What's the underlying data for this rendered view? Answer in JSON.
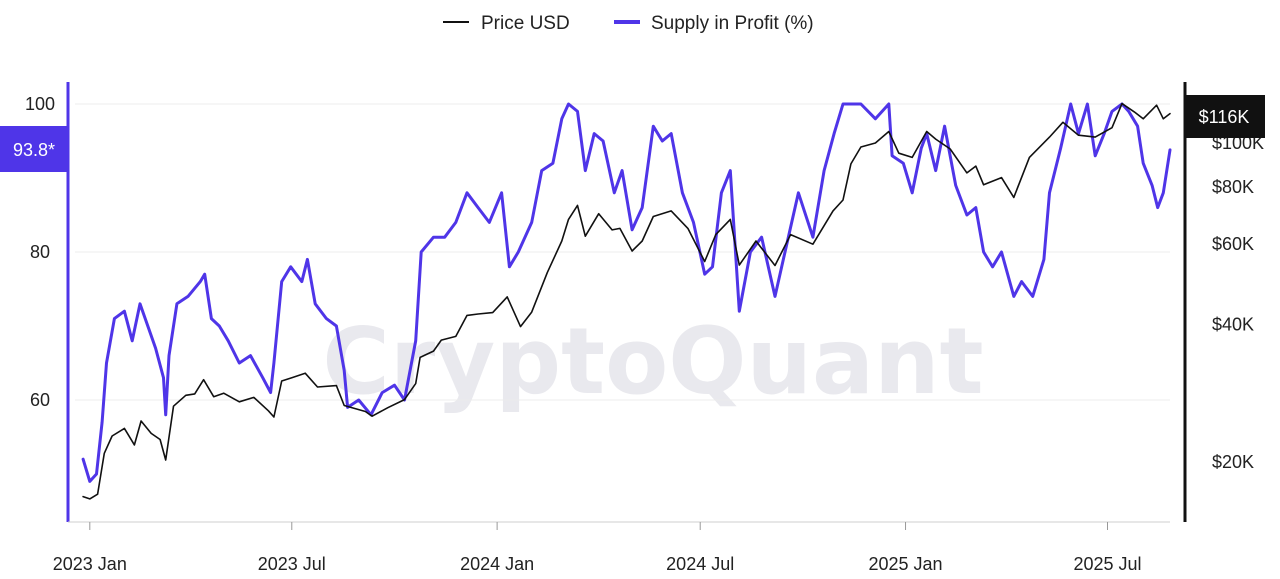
{
  "watermark": "CryptoQuant",
  "colors": {
    "price": "#111111",
    "supply": "#4f35e8",
    "grid": "#ececec",
    "price_badge_bg": "#111111",
    "supply_badge_bg": "#4f35e8"
  },
  "chart_data": {
    "type": "line",
    "legend": {
      "position": "top-center",
      "entries": [
        "Price USD",
        "Supply in Profit (%)"
      ]
    },
    "grid": true,
    "x_ticks": [
      "2023 Jan",
      "2023 Jul",
      "2024 Jan",
      "2024 Jul",
      "2025 Jan",
      "2025 Jul"
    ],
    "x_tick_dates": [
      "2023-01-01",
      "2023-07-01",
      "2024-01-01",
      "2024-07-01",
      "2025-01-01",
      "2025-07-01"
    ],
    "xlim": [
      "2022-12-25",
      "2025-08-26"
    ],
    "y_left": {
      "ticks": [
        60,
        80,
        100
      ],
      "tick_labels": [
        "60",
        "80",
        "100"
      ],
      "range": [
        45,
        103.5
      ]
    },
    "y_right": {
      "scale": "log",
      "ticks": [
        20000,
        40000,
        60000,
        80000,
        100000
      ],
      "tick_labels": [
        "$20K",
        "$40K",
        "$60K",
        "$80K",
        "$100K"
      ],
      "range": [
        14000,
        125000
      ]
    },
    "current_labels": {
      "price": "$116K",
      "supply": "93.8*"
    },
    "series": [
      {
        "name": "Supply in Profit (%)",
        "axis": "left",
        "points": [
          [
            "2022-12-26",
            52
          ],
          [
            "2023-01-01",
            49
          ],
          [
            "2023-01-07",
            50
          ],
          [
            "2023-01-12",
            57
          ],
          [
            "2023-01-16",
            65
          ],
          [
            "2023-01-23",
            71
          ],
          [
            "2023-02-01",
            72
          ],
          [
            "2023-02-08",
            68
          ],
          [
            "2023-02-15",
            73
          ],
          [
            "2023-02-22",
            70
          ],
          [
            "2023-03-01",
            67
          ],
          [
            "2023-03-08",
            63
          ],
          [
            "2023-03-10",
            58
          ],
          [
            "2023-03-13",
            66
          ],
          [
            "2023-03-20",
            73
          ],
          [
            "2023-03-30",
            74
          ],
          [
            "2023-04-10",
            76
          ],
          [
            "2023-04-14",
            77
          ],
          [
            "2023-04-20",
            71
          ],
          [
            "2023-04-27",
            70
          ],
          [
            "2023-05-05",
            68
          ],
          [
            "2023-05-15",
            65
          ],
          [
            "2023-05-25",
            66
          ],
          [
            "2023-06-05",
            63
          ],
          [
            "2023-06-12",
            61
          ],
          [
            "2023-06-15",
            65
          ],
          [
            "2023-06-22",
            76
          ],
          [
            "2023-06-30",
            78
          ],
          [
            "2023-07-10",
            76
          ],
          [
            "2023-07-15",
            79
          ],
          [
            "2023-07-22",
            73
          ],
          [
            "2023-08-01",
            71
          ],
          [
            "2023-08-10",
            70
          ],
          [
            "2023-08-17",
            64
          ],
          [
            "2023-08-20",
            59
          ],
          [
            "2023-08-30",
            60
          ],
          [
            "2023-09-10",
            58
          ],
          [
            "2023-09-20",
            61
          ],
          [
            "2023-10-01",
            62
          ],
          [
            "2023-10-10",
            60
          ],
          [
            "2023-10-20",
            68
          ],
          [
            "2023-10-25",
            80
          ],
          [
            "2023-11-05",
            82
          ],
          [
            "2023-11-15",
            82
          ],
          [
            "2023-11-25",
            84
          ],
          [
            "2023-12-05",
            88
          ],
          [
            "2023-12-15",
            86
          ],
          [
            "2023-12-25",
            84
          ],
          [
            "2024-01-05",
            88
          ],
          [
            "2024-01-12",
            78
          ],
          [
            "2024-01-20",
            80
          ],
          [
            "2024-02-01",
            84
          ],
          [
            "2024-02-10",
            91
          ],
          [
            "2024-02-20",
            92
          ],
          [
            "2024-02-28",
            98
          ],
          [
            "2024-03-05",
            100
          ],
          [
            "2024-03-13",
            99
          ],
          [
            "2024-03-20",
            91
          ],
          [
            "2024-03-28",
            96
          ],
          [
            "2024-04-05",
            95
          ],
          [
            "2024-04-15",
            88
          ],
          [
            "2024-04-22",
            91
          ],
          [
            "2024-05-01",
            83
          ],
          [
            "2024-05-10",
            86
          ],
          [
            "2024-05-20",
            97
          ],
          [
            "2024-05-28",
            95
          ],
          [
            "2024-06-05",
            96
          ],
          [
            "2024-06-15",
            88
          ],
          [
            "2024-06-25",
            84
          ],
          [
            "2024-07-05",
            77
          ],
          [
            "2024-07-12",
            78
          ],
          [
            "2024-07-20",
            88
          ],
          [
            "2024-07-28",
            91
          ],
          [
            "2024-08-05",
            72
          ],
          [
            "2024-08-15",
            80
          ],
          [
            "2024-08-25",
            82
          ],
          [
            "2024-09-06",
            74
          ],
          [
            "2024-09-15",
            80
          ],
          [
            "2024-09-27",
            88
          ],
          [
            "2024-10-10",
            82
          ],
          [
            "2024-10-20",
            91
          ],
          [
            "2024-10-29",
            96
          ],
          [
            "2024-11-06",
            100
          ],
          [
            "2024-11-13",
            100
          ],
          [
            "2024-11-22",
            100
          ],
          [
            "2024-12-05",
            98
          ],
          [
            "2024-12-17",
            100
          ],
          [
            "2024-12-20",
            93
          ],
          [
            "2024-12-30",
            92
          ],
          [
            "2025-01-07",
            88
          ],
          [
            "2025-01-15",
            94
          ],
          [
            "2025-01-20",
            96
          ],
          [
            "2025-01-28",
            91
          ],
          [
            "2025-02-05",
            97
          ],
          [
            "2025-02-15",
            89
          ],
          [
            "2025-02-25",
            85
          ],
          [
            "2025-03-05",
            86
          ],
          [
            "2025-03-12",
            80
          ],
          [
            "2025-03-20",
            78
          ],
          [
            "2025-03-28",
            80
          ],
          [
            "2025-04-08",
            74
          ],
          [
            "2025-04-15",
            76
          ],
          [
            "2025-04-25",
            74
          ],
          [
            "2025-05-05",
            79
          ],
          [
            "2025-05-10",
            88
          ],
          [
            "2025-05-20",
            94
          ],
          [
            "2025-05-29",
            100
          ],
          [
            "2025-06-05",
            96
          ],
          [
            "2025-06-13",
            100
          ],
          [
            "2025-06-20",
            93
          ],
          [
            "2025-06-28",
            96
          ],
          [
            "2025-07-05",
            99
          ],
          [
            "2025-07-14",
            100
          ],
          [
            "2025-07-20",
            99
          ],
          [
            "2025-07-28",
            97
          ],
          [
            "2025-08-02",
            92
          ],
          [
            "2025-08-10",
            89
          ],
          [
            "2025-08-15",
            86
          ],
          [
            "2025-08-20",
            88
          ],
          [
            "2025-08-26",
            93.8
          ]
        ]
      },
      {
        "name": "Price USD",
        "axis": "right",
        "points": [
          [
            "2022-12-26",
            16800
          ],
          [
            "2023-01-01",
            16600
          ],
          [
            "2023-01-08",
            17000
          ],
          [
            "2023-01-14",
            20900
          ],
          [
            "2023-01-21",
            22800
          ],
          [
            "2023-02-01",
            23700
          ],
          [
            "2023-02-10",
            21800
          ],
          [
            "2023-02-16",
            24600
          ],
          [
            "2023-02-25",
            23100
          ],
          [
            "2023-03-05",
            22400
          ],
          [
            "2023-03-10",
            20200
          ],
          [
            "2023-03-17",
            26500
          ],
          [
            "2023-03-28",
            28000
          ],
          [
            "2023-04-05",
            28200
          ],
          [
            "2023-04-13",
            30300
          ],
          [
            "2023-04-22",
            27800
          ],
          [
            "2023-05-01",
            28300
          ],
          [
            "2023-05-15",
            27100
          ],
          [
            "2023-05-28",
            27700
          ],
          [
            "2023-06-10",
            25900
          ],
          [
            "2023-06-15",
            25100
          ],
          [
            "2023-06-22",
            30100
          ],
          [
            "2023-07-01",
            30600
          ],
          [
            "2023-07-13",
            31300
          ],
          [
            "2023-07-24",
            29200
          ],
          [
            "2023-08-10",
            29400
          ],
          [
            "2023-08-17",
            26600
          ],
          [
            "2023-09-05",
            25800
          ],
          [
            "2023-09-11",
            25200
          ],
          [
            "2023-09-25",
            26300
          ],
          [
            "2023-10-10",
            27400
          ],
          [
            "2023-10-20",
            29700
          ],
          [
            "2023-10-24",
            33900
          ],
          [
            "2023-11-05",
            35000
          ],
          [
            "2023-11-12",
            37000
          ],
          [
            "2023-11-25",
            37700
          ],
          [
            "2023-12-05",
            41900
          ],
          [
            "2023-12-15",
            42200
          ],
          [
            "2023-12-28",
            42500
          ],
          [
            "2024-01-10",
            46000
          ],
          [
            "2024-01-22",
            39600
          ],
          [
            "2024-02-01",
            42600
          ],
          [
            "2024-02-15",
            52000
          ],
          [
            "2024-02-28",
            61000
          ],
          [
            "2024-03-05",
            68000
          ],
          [
            "2024-03-13",
            73000
          ],
          [
            "2024-03-20",
            62500
          ],
          [
            "2024-04-01",
            70000
          ],
          [
            "2024-04-13",
            64500
          ],
          [
            "2024-04-20",
            65000
          ],
          [
            "2024-05-01",
            58000
          ],
          [
            "2024-05-10",
            61000
          ],
          [
            "2024-05-20",
            69000
          ],
          [
            "2024-06-05",
            71000
          ],
          [
            "2024-06-20",
            65000
          ],
          [
            "2024-07-05",
            55000
          ],
          [
            "2024-07-15",
            63000
          ],
          [
            "2024-07-28",
            68000
          ],
          [
            "2024-08-05",
            54000
          ],
          [
            "2024-08-20",
            61000
          ],
          [
            "2024-09-06",
            53900
          ],
          [
            "2024-09-20",
            63000
          ],
          [
            "2024-10-10",
            60000
          ],
          [
            "2024-10-28",
            71000
          ],
          [
            "2024-11-06",
            75000
          ],
          [
            "2024-11-13",
            90000
          ],
          [
            "2024-11-22",
            98000
          ],
          [
            "2024-12-05",
            100000
          ],
          [
            "2024-12-17",
            106000
          ],
          [
            "2024-12-26",
            95000
          ],
          [
            "2025-01-07",
            93000
          ],
          [
            "2025-01-20",
            106000
          ],
          [
            "2025-01-28",
            102000
          ],
          [
            "2025-02-10",
            97000
          ],
          [
            "2025-02-25",
            86000
          ],
          [
            "2025-03-05",
            89000
          ],
          [
            "2025-03-12",
            81000
          ],
          [
            "2025-03-28",
            84000
          ],
          [
            "2025-04-08",
            76000
          ],
          [
            "2025-04-22",
            93000
          ],
          [
            "2025-05-10",
            103000
          ],
          [
            "2025-05-22",
            111000
          ],
          [
            "2025-06-05",
            104000
          ],
          [
            "2025-06-20",
            103000
          ],
          [
            "2025-07-05",
            108000
          ],
          [
            "2025-07-14",
            122000
          ],
          [
            "2025-07-25",
            117000
          ],
          [
            "2025-08-02",
            113000
          ],
          [
            "2025-08-14",
            121000
          ],
          [
            "2025-08-20",
            113000
          ],
          [
            "2025-08-26",
            116000
          ]
        ]
      }
    ]
  }
}
